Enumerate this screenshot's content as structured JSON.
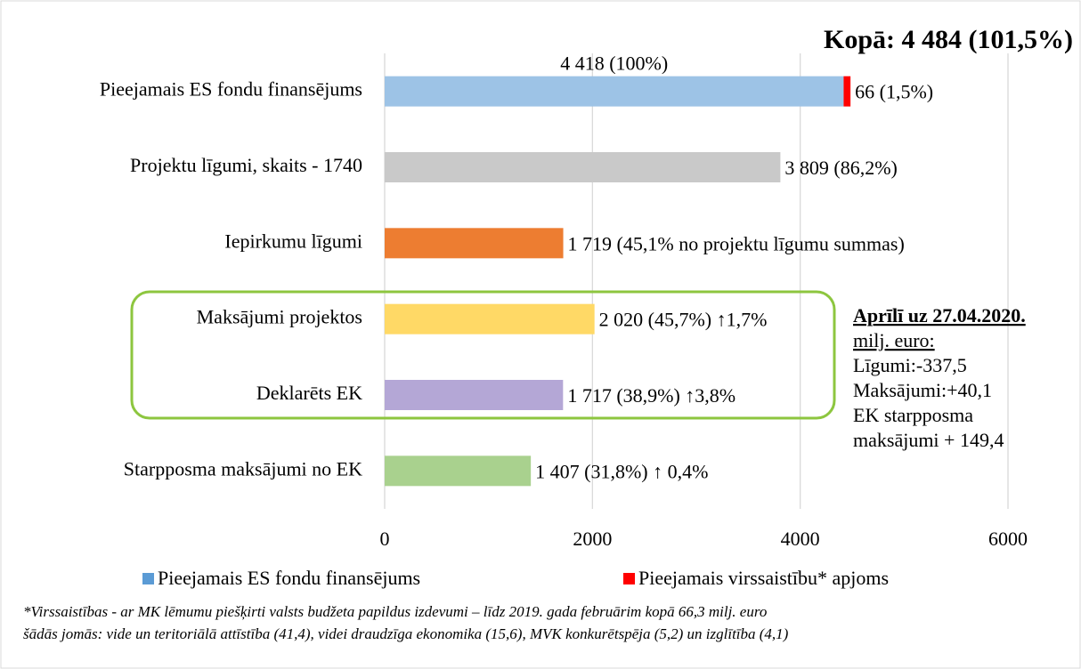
{
  "chart_data": {
    "type": "bar",
    "orientation": "horizontal",
    "stacked": true,
    "title": "Kopā: 4 484 (101,5%)",
    "categories": [
      "Pieejamais ES fondu finansējums",
      "Projektu līgumi, skaits - 1740",
      "Iepirkumu līgumi",
      "Maksājumi projektos",
      "Deklarēts EK",
      "Starpposma maksājumi no EK"
    ],
    "series": [
      {
        "name": "Pieejamais ES fondu finansējums",
        "color": "#5b9bd5",
        "colors": [
          "#9dc3e6",
          "#c9c9c9",
          "#ed7d31",
          "#ffd966",
          "#b4a7d6",
          "#a9d18e"
        ],
        "values": [
          4418,
          3809,
          1719,
          2020,
          1717,
          1407
        ],
        "value_labels": [
          "4 418 (100%)",
          "3 809 (86,2%)",
          "1 719 (45,1% no projektu līgumu summas)",
          "2 020 (45,7%) ↑1,7%",
          "1 717 (38,9%) ↑3,8%",
          "1 407 (31,8%) ↑ 0,4%"
        ]
      },
      {
        "name": "Pieejamais virssaistību* apjoms",
        "color": "#ff0000",
        "values": [
          66,
          null,
          null,
          null,
          null,
          null
        ],
        "value_labels": [
          "66 (1,5%)",
          null,
          null,
          null,
          null,
          null
        ]
      }
    ],
    "xlim": [
      0,
      6000
    ],
    "xticks": [
      0,
      2000,
      4000,
      6000
    ],
    "grid": true,
    "legend": "bottom",
    "annotations": [
      "Aprīlī uz 27.04.2020.",
      "milj. euro:",
      "Līgumi:-337,5",
      "Maksājumi:+40,1",
      "EK starpposma",
      "maksājumi + 149,4"
    ],
    "footnote": [
      "*Virssaistības - ar MK lēmumu piešķirti valsts budžeta papildus izdevumi – līdz 2019. gada februārim kopā 66,3 milj. euro",
      "šādās jomās: vide un teritoriālā attīstība (41,4), videi draudzīga ekonomika (15,6), MVK konkurētspēja (5,2) un izglītība (4,1)"
    ]
  }
}
